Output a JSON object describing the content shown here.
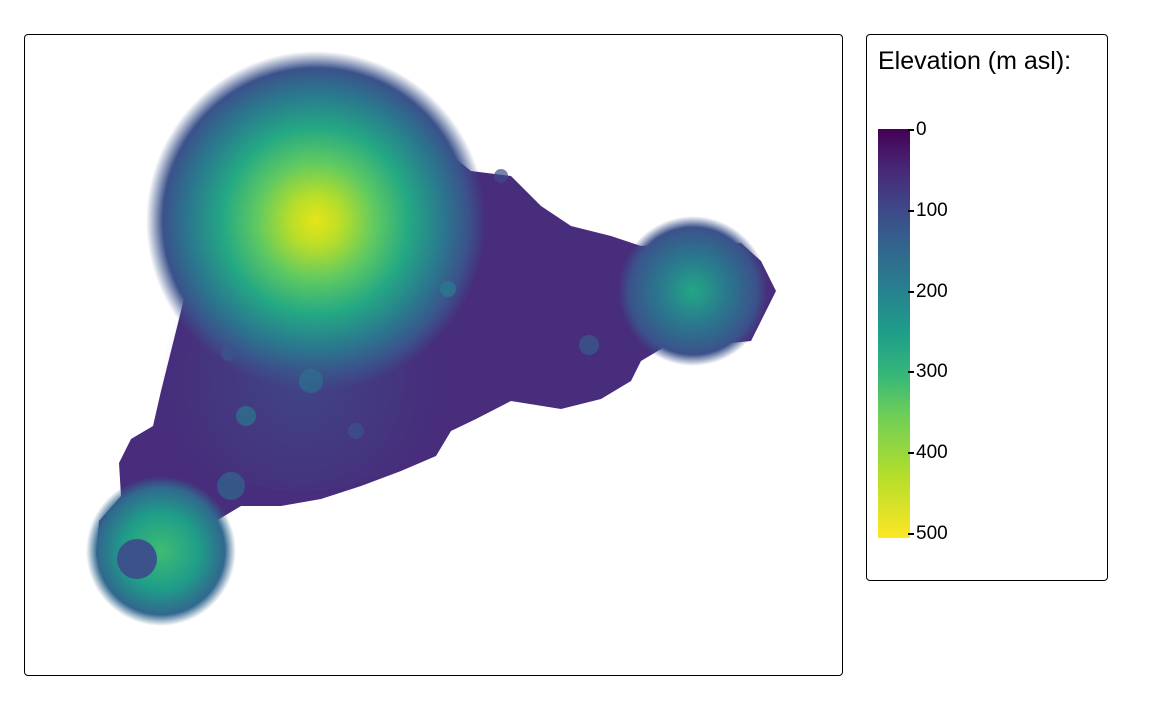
{
  "map": {
    "feature": "island-elevation-raster",
    "colormap": "viridis"
  },
  "legend": {
    "title": "Elevation (m asl):",
    "ticks": [
      "0",
      "100",
      "200",
      "300",
      "400",
      "500"
    ],
    "range": [
      0,
      500
    ],
    "colors": [
      "#440154",
      "#482878",
      "#3e4a89",
      "#31688e",
      "#26828e",
      "#1f9e89",
      "#35b779",
      "#6ece58",
      "#b5de2b",
      "#fde725"
    ]
  }
}
